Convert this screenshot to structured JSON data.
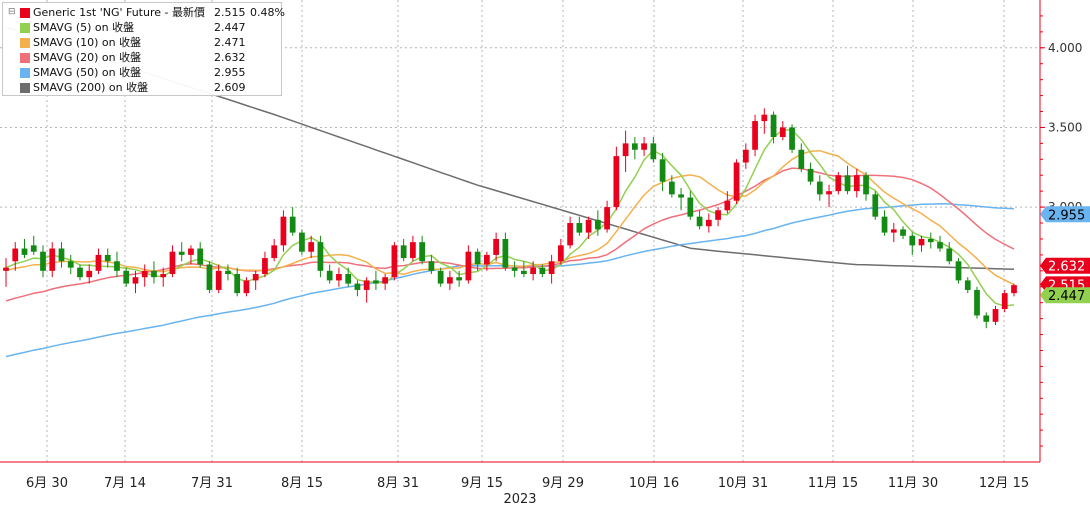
{
  "chart_data": {
    "type": "candlestick",
    "year_label": "2023",
    "x_tick_labels": [
      "6月 30",
      "7月 14",
      "7月 31",
      "8月 15",
      "8月 31",
      "9月 15",
      "9月 29",
      "10月 16",
      "10月 31",
      "11月 15",
      "11月 30",
      "12月 15"
    ],
    "y_tick_labels": [
      "4.000",
      "3.500",
      "3.000"
    ],
    "y_ticks": [
      4.0,
      3.5,
      3.0
    ],
    "ylim": [
      1.4,
      4.3
    ],
    "legend": [
      {
        "name": "Generic 1st 'NG' Future - 最新價",
        "value": "2.515",
        "change": "0.48%",
        "color": "#e8001c"
      },
      {
        "name": "SMAVG (5)  on 收盤",
        "value": "2.447",
        "color": "#92d050"
      },
      {
        "name": "SMAVG (10)  on 收盤",
        "value": "2.471",
        "color": "#f5b04e"
      },
      {
        "name": "SMAVG (20)  on 收盤",
        "value": "2.632",
        "color": "#f0707a"
      },
      {
        "name": "SMAVG (50)  on 收盤",
        "value": "2.955",
        "color": "#69b4f0"
      },
      {
        "name": "SMAVG (200)  on 收盤",
        "value": "2.609",
        "color": "#6d6d6d"
      }
    ],
    "price_tags": [
      {
        "value": "2.955",
        "y": 2.955,
        "fill": "#69b4f0",
        "text_color": "#000000"
      },
      {
        "value": "2.632",
        "y": 2.632,
        "fill": "#e8001c",
        "text_color": "#ffffff"
      },
      {
        "value": "2.515",
        "y": 2.515,
        "fill": "#e8001c",
        "text_color": "#ffffff"
      },
      {
        "value": "2.447",
        "y": 2.447,
        "fill": "#92d050",
        "text_color": "#000000"
      }
    ],
    "candles": [
      [
        2.6,
        2.68,
        2.5,
        2.62
      ],
      [
        2.66,
        2.78,
        2.6,
        2.74
      ],
      [
        2.74,
        2.8,
        2.68,
        2.7
      ],
      [
        2.76,
        2.82,
        2.7,
        2.72
      ],
      [
        2.72,
        2.76,
        2.56,
        2.6
      ],
      [
        2.6,
        2.78,
        2.56,
        2.74
      ],
      [
        2.74,
        2.78,
        2.62,
        2.66
      ],
      [
        2.66,
        2.7,
        2.58,
        2.62
      ],
      [
        2.62,
        2.64,
        2.54,
        2.56
      ],
      [
        2.56,
        2.64,
        2.52,
        2.6
      ],
      [
        2.6,
        2.74,
        2.58,
        2.7
      ],
      [
        2.7,
        2.74,
        2.62,
        2.66
      ],
      [
        2.66,
        2.72,
        2.56,
        2.6
      ],
      [
        2.6,
        2.62,
        2.5,
        2.52
      ],
      [
        2.52,
        2.6,
        2.46,
        2.56
      ],
      [
        2.56,
        2.64,
        2.5,
        2.6
      ],
      [
        2.6,
        2.66,
        2.52,
        2.56
      ],
      [
        2.56,
        2.62,
        2.5,
        2.58
      ],
      [
        2.58,
        2.76,
        2.56,
        2.72
      ],
      [
        2.72,
        2.78,
        2.66,
        2.7
      ],
      [
        2.7,
        2.76,
        2.64,
        2.74
      ],
      [
        2.74,
        2.78,
        2.62,
        2.64
      ],
      [
        2.64,
        2.66,
        2.46,
        2.48
      ],
      [
        2.48,
        2.64,
        2.46,
        2.6
      ],
      [
        2.6,
        2.64,
        2.54,
        2.58
      ],
      [
        2.58,
        2.62,
        2.44,
        2.46
      ],
      [
        2.46,
        2.56,
        2.44,
        2.54
      ],
      [
        2.54,
        2.6,
        2.48,
        2.58
      ],
      [
        2.58,
        2.72,
        2.56,
        2.68
      ],
      [
        2.68,
        2.8,
        2.66,
        2.76
      ],
      [
        2.76,
        2.98,
        2.72,
        2.94
      ],
      [
        2.94,
        3.0,
        2.82,
        2.84
      ],
      [
        2.84,
        2.86,
        2.7,
        2.72
      ],
      [
        2.72,
        2.82,
        2.68,
        2.78
      ],
      [
        2.78,
        2.82,
        2.56,
        2.6
      ],
      [
        2.6,
        2.64,
        2.52,
        2.54
      ],
      [
        2.54,
        2.62,
        2.5,
        2.58
      ],
      [
        2.58,
        2.62,
        2.5,
        2.52
      ],
      [
        2.52,
        2.54,
        2.44,
        2.48
      ],
      [
        2.48,
        2.56,
        2.4,
        2.54
      ],
      [
        2.54,
        2.6,
        2.48,
        2.52
      ],
      [
        2.52,
        2.58,
        2.48,
        2.56
      ],
      [
        2.56,
        2.78,
        2.54,
        2.76
      ],
      [
        2.76,
        2.8,
        2.66,
        2.68
      ],
      [
        2.68,
        2.82,
        2.66,
        2.78
      ],
      [
        2.78,
        2.82,
        2.64,
        2.66
      ],
      [
        2.66,
        2.7,
        2.58,
        2.6
      ],
      [
        2.6,
        2.62,
        2.5,
        2.52
      ],
      [
        2.52,
        2.6,
        2.48,
        2.56
      ],
      [
        2.56,
        2.6,
        2.5,
        2.54
      ],
      [
        2.54,
        2.76,
        2.52,
        2.72
      ],
      [
        2.72,
        2.74,
        2.6,
        2.64
      ],
      [
        2.64,
        2.72,
        2.6,
        2.7
      ],
      [
        2.7,
        2.84,
        2.66,
        2.8
      ],
      [
        2.8,
        2.84,
        2.6,
        2.62
      ],
      [
        2.62,
        2.66,
        2.56,
        2.6
      ],
      [
        2.6,
        2.66,
        2.56,
        2.58
      ],
      [
        2.58,
        2.66,
        2.54,
        2.62
      ],
      [
        2.62,
        2.64,
        2.56,
        2.58
      ],
      [
        2.58,
        2.7,
        2.52,
        2.66
      ],
      [
        2.66,
        2.8,
        2.64,
        2.76
      ],
      [
        2.76,
        2.94,
        2.74,
        2.9
      ],
      [
        2.9,
        2.94,
        2.82,
        2.84
      ],
      [
        2.84,
        2.94,
        2.8,
        2.92
      ],
      [
        2.92,
        2.98,
        2.82,
        2.86
      ],
      [
        2.86,
        3.04,
        2.84,
        3.0
      ],
      [
        3.0,
        3.38,
        2.98,
        3.32
      ],
      [
        3.32,
        3.48,
        3.22,
        3.4
      ],
      [
        3.4,
        3.44,
        3.3,
        3.36
      ],
      [
        3.36,
        3.44,
        3.32,
        3.4
      ],
      [
        3.4,
        3.44,
        3.28,
        3.3
      ],
      [
        3.3,
        3.34,
        3.1,
        3.16
      ],
      [
        3.16,
        3.2,
        3.06,
        3.08
      ],
      [
        3.08,
        3.12,
        2.98,
        3.06
      ],
      [
        3.06,
        3.1,
        2.92,
        2.94
      ],
      [
        2.94,
        2.98,
        2.86,
        2.88
      ],
      [
        2.88,
        2.96,
        2.84,
        2.92
      ],
      [
        2.92,
        3.0,
        2.88,
        2.98
      ],
      [
        2.98,
        3.1,
        2.96,
        3.04
      ],
      [
        3.04,
        3.3,
        3.02,
        3.28
      ],
      [
        3.28,
        3.4,
        3.24,
        3.36
      ],
      [
        3.36,
        3.58,
        3.32,
        3.54
      ],
      [
        3.54,
        3.62,
        3.46,
        3.58
      ],
      [
        3.58,
        3.6,
        3.4,
        3.44
      ],
      [
        3.44,
        3.54,
        3.42,
        3.5
      ],
      [
        3.5,
        3.52,
        3.34,
        3.36
      ],
      [
        3.36,
        3.4,
        3.22,
        3.24
      ],
      [
        3.24,
        3.28,
        3.14,
        3.16
      ],
      [
        3.16,
        3.2,
        3.04,
        3.08
      ],
      [
        3.08,
        3.14,
        3.0,
        3.1
      ],
      [
        3.1,
        3.22,
        3.08,
        3.2
      ],
      [
        3.2,
        3.26,
        3.08,
        3.1
      ],
      [
        3.1,
        3.24,
        3.06,
        3.2
      ],
      [
        3.2,
        3.22,
        3.04,
        3.08
      ],
      [
        3.08,
        3.1,
        2.92,
        2.94
      ],
      [
        2.94,
        2.98,
        2.82,
        2.84
      ],
      [
        2.84,
        2.9,
        2.78,
        2.86
      ],
      [
        2.86,
        2.88,
        2.8,
        2.82
      ],
      [
        2.82,
        2.84,
        2.7,
        2.76
      ],
      [
        2.76,
        2.82,
        2.72,
        2.8
      ],
      [
        2.8,
        2.84,
        2.74,
        2.78
      ],
      [
        2.78,
        2.82,
        2.72,
        2.74
      ],
      [
        2.74,
        2.78,
        2.64,
        2.66
      ],
      [
        2.66,
        2.68,
        2.52,
        2.54
      ],
      [
        2.54,
        2.56,
        2.46,
        2.48
      ],
      [
        2.48,
        2.5,
        2.3,
        2.32
      ],
      [
        2.32,
        2.34,
        2.24,
        2.28
      ],
      [
        2.28,
        2.38,
        2.26,
        2.36
      ],
      [
        2.36,
        2.48,
        2.34,
        2.46
      ],
      [
        2.46,
        2.52,
        2.44,
        2.51
      ]
    ]
  }
}
